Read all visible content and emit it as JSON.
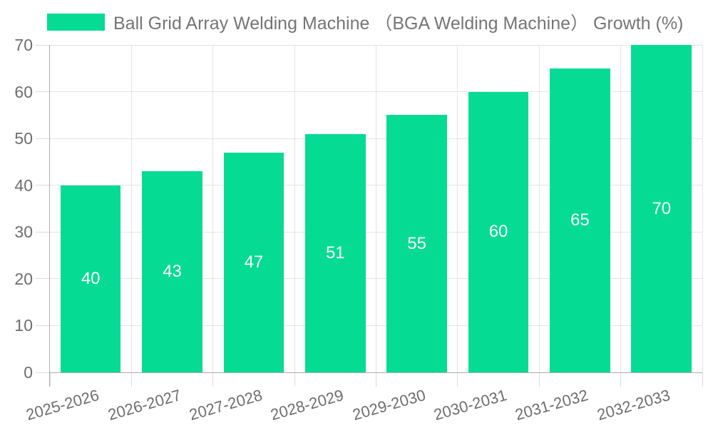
{
  "legend": {
    "label": "Ball Grid Array Welding Machine （BGA Welding Machine） Growth (%)"
  },
  "colors": {
    "bar": "#06db94",
    "grid": "#e4e4e4",
    "tick": "#dcdcdc",
    "axis": "#adadad",
    "tick_text": "#6e6e6e",
    "legend_text": "#757575",
    "bar_label_text": "#ffffff",
    "background": "#ffffff"
  },
  "chart_data": {
    "type": "bar",
    "title": "Ball Grid Array Welding Machine （BGA Welding Machine） Growth (%)",
    "categories": [
      "2025-2026",
      "2026-2027",
      "2027-2028",
      "2028-2029",
      "2029-2030",
      "2030-2031",
      "2031-2032",
      "2032-2033"
    ],
    "values": [
      40,
      43,
      47,
      51,
      55,
      60,
      65,
      70
    ],
    "xlabel": "",
    "ylabel": "",
    "ylim": [
      0,
      70
    ],
    "yticks": [
      0,
      10,
      20,
      30,
      40,
      50,
      60,
      70
    ],
    "grid": "both",
    "legend_position": "top-left",
    "bar_label_position": "inside-center",
    "x_label_rotation_deg": -16
  }
}
